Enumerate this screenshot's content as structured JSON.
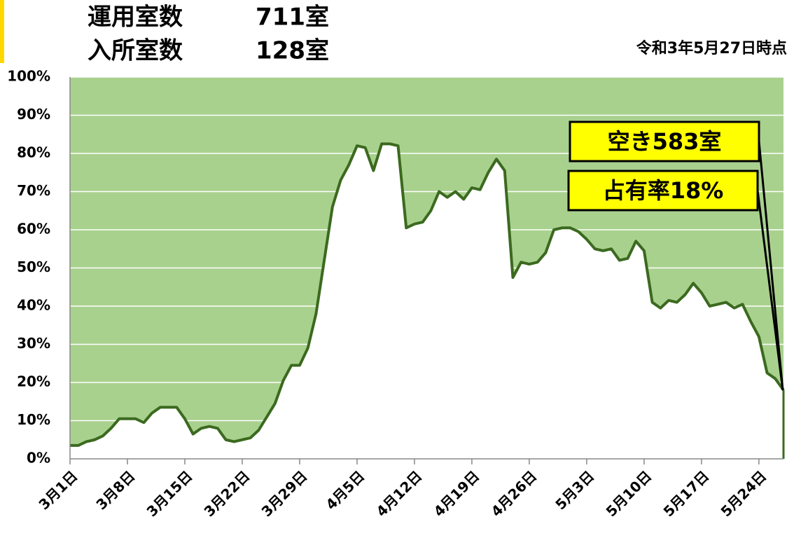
{
  "chart_data": {
    "type": "area-line",
    "stats": [
      {
        "label": "運用室数",
        "value": "711室"
      },
      {
        "label": "入所室数",
        "value": "128室"
      }
    ],
    "note": "令和3年5月27日時点",
    "annotations": [
      "空き583室",
      "占有率18%"
    ],
    "categories": [
      "3月1日",
      null,
      null,
      null,
      null,
      null,
      null,
      "3月8日",
      null,
      null,
      null,
      null,
      null,
      null,
      "3月15日",
      null,
      null,
      null,
      null,
      null,
      null,
      "3月22日",
      null,
      null,
      null,
      null,
      null,
      null,
      "3月29日",
      null,
      null,
      null,
      null,
      null,
      null,
      "4月5日",
      null,
      null,
      null,
      null,
      null,
      null,
      "4月12日",
      null,
      null,
      null,
      null,
      null,
      null,
      "4月19日",
      null,
      null,
      null,
      null,
      null,
      null,
      "4月26日",
      null,
      null,
      null,
      null,
      null,
      null,
      "5月3日",
      null,
      null,
      null,
      null,
      null,
      null,
      "5月10日",
      null,
      null,
      null,
      null,
      null,
      null,
      "5月17日",
      null,
      null,
      null,
      null,
      null,
      null,
      "5月24日",
      null,
      null,
      null
    ],
    "values": [
      3.5,
      3.5,
      4.5,
      5,
      6,
      8,
      10.5,
      10.5,
      10.5,
      9.5,
      12,
      13.5,
      13.5,
      13.5,
      10.5,
      6.5,
      8,
      8.5,
      8,
      5,
      4.5,
      5,
      5.5,
      7.5,
      11,
      14.5,
      20.5,
      24.5,
      24.5,
      29,
      38,
      52,
      66,
      73,
      77,
      82,
      81.5,
      75.5,
      82.5,
      82.5,
      82,
      60.5,
      61.5,
      62,
      65,
      70,
      68.5,
      70,
      68,
      71,
      70.5,
      75,
      78.5,
      75.5,
      47.5,
      51.5,
      51,
      51.5,
      54,
      60,
      60.5,
      60.5,
      59.5,
      57.5,
      55,
      54.5,
      55,
      52,
      52.5,
      57,
      54.5,
      41,
      39.5,
      41.5,
      41,
      43,
      46,
      43.5,
      40,
      40.5,
      41,
      39.5,
      40.5,
      36,
      32,
      22.5,
      21,
      18
    ],
    "color": "#3b6a1f",
    "fill_above": "#a9d18e",
    "ylim": [
      0,
      100
    ],
    "yticks": [
      {
        "value": 0,
        "label": "0%"
      },
      {
        "value": 10,
        "label": "10%"
      },
      {
        "value": 20,
        "label": "20%"
      },
      {
        "value": 30,
        "label": "30%"
      },
      {
        "value": 40,
        "label": "40%"
      },
      {
        "value": 50,
        "label": "50%"
      },
      {
        "value": 60,
        "label": "60%"
      },
      {
        "value": 70,
        "label": "70%"
      },
      {
        "value": 80,
        "label": "80%"
      },
      {
        "value": 90,
        "label": "90%"
      },
      {
        "value": 100,
        "label": "100%"
      }
    ],
    "grid": true
  }
}
